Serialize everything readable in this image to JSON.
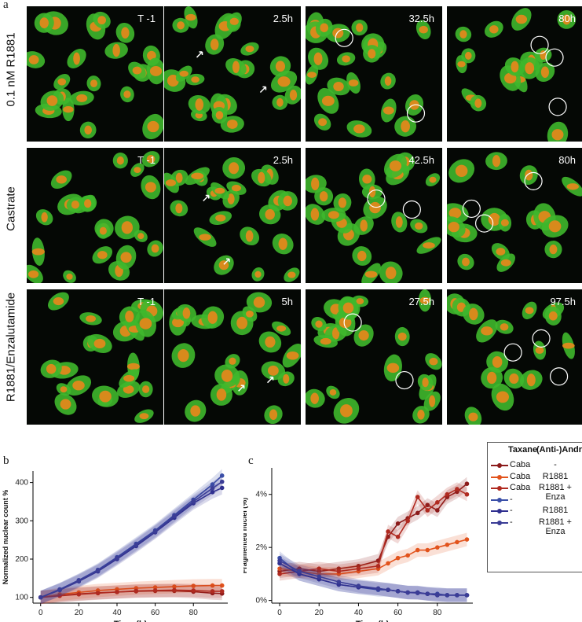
{
  "panel_a": {
    "letter": "a",
    "rows": [
      {
        "label": "0.1 nM R1881",
        "times": [
          "T -1",
          "2.5h",
          "32.5h",
          "80h"
        ]
      },
      {
        "label": "Castrate",
        "times": [
          "T -1",
          "2.5h",
          "42.5h",
          "80h"
        ]
      },
      {
        "label": "R1881/Enzalutamide",
        "times": [
          "T -1",
          "5h",
          "27.5h",
          "97.5h"
        ]
      }
    ],
    "colors": {
      "cytoplasm": "#3fb82c",
      "nucleus": "#d88a1c",
      "background": "#050805",
      "marker": "#ffffff"
    }
  },
  "legend": {
    "header_taxane": "Taxane",
    "header_androgens": "(Anti-)Androgens",
    "items": [
      {
        "taxane": "Caba",
        "androgen": "-",
        "color": "#8b1a1a"
      },
      {
        "taxane": "Caba",
        "androgen": "R1881",
        "color": "#e2531c"
      },
      {
        "taxane": "Caba",
        "androgen": "R1881 + Enza",
        "color": "#b02a20"
      },
      {
        "taxane": "-",
        "androgen": "-",
        "color": "#3a4fa8"
      },
      {
        "taxane": "-",
        "androgen": "R1881",
        "color": "#2f2f8f"
      },
      {
        "taxane": "-",
        "androgen": "R1881 + Enza",
        "color": "#3b3d96"
      }
    ]
  },
  "chart_data": [
    {
      "panel": "b",
      "type": "line",
      "xlabel": "Time (h)",
      "ylabel": "Normalized nuclear count %",
      "xlim": [
        -4,
        98
      ],
      "ylim": [
        85,
        430
      ],
      "xticks": [
        0,
        20,
        40,
        60,
        80
      ],
      "yticks": [
        100,
        200,
        300,
        400
      ],
      "grid": false,
      "x": [
        0,
        10,
        20,
        30,
        40,
        50,
        60,
        70,
        80,
        90,
        95
      ],
      "series": [
        {
          "color": "#8b1a1a",
          "values": [
            100,
            105,
            109,
            112,
            114,
            116,
            117,
            117,
            115,
            111,
            110
          ]
        },
        {
          "color": "#e2531c",
          "values": [
            100,
            108,
            113,
            118,
            121,
            124,
            126,
            128,
            130,
            131,
            131
          ]
        },
        {
          "color": "#b02a20",
          "values": [
            100,
            104,
            108,
            111,
            114,
            117,
            118,
            119,
            118,
            116,
            116
          ]
        },
        {
          "color": "#3a4fa8",
          "values": [
            100,
            121,
            145,
            172,
            205,
            240,
            275,
            315,
            355,
            395,
            418
          ]
        },
        {
          "color": "#2f2f8f",
          "values": [
            100,
            119,
            142,
            168,
            200,
            234,
            270,
            308,
            346,
            375,
            386
          ]
        },
        {
          "color": "#3b3d96",
          "values": [
            100,
            120,
            144,
            170,
            203,
            237,
            272,
            312,
            350,
            385,
            402
          ]
        }
      ]
    },
    {
      "panel": "c",
      "type": "line",
      "xlabel": "Time (h)",
      "ylabel": "Fragmented nuclei (%)",
      "xlim": [
        -4,
        98
      ],
      "ylim": [
        -0.1,
        5.0
      ],
      "xticks": [
        0,
        20,
        40,
        60,
        80
      ],
      "yticks": [
        0,
        2,
        4
      ],
      "ytick_labels": [
        "0%",
        "2%",
        "4%"
      ],
      "grid": false,
      "x": [
        0,
        10,
        20,
        30,
        40,
        50,
        55,
        60,
        65,
        70,
        75,
        80,
        85,
        90,
        95
      ],
      "series": [
        {
          "color": "#8b1a1a",
          "values": [
            1.1,
            1.2,
            1.1,
            1.2,
            1.3,
            1.5,
            2.4,
            2.9,
            3.1,
            3.3,
            3.6,
            3.4,
            3.9,
            4.1,
            4.4
          ]
        },
        {
          "color": "#e2531c",
          "values": [
            1.2,
            1.1,
            1.0,
            1.0,
            1.1,
            1.2,
            1.4,
            1.6,
            1.7,
            1.9,
            1.9,
            2.0,
            2.1,
            2.2,
            2.3
          ]
        },
        {
          "color": "#b02a20",
          "values": [
            1.0,
            1.1,
            1.2,
            1.1,
            1.2,
            1.3,
            2.6,
            2.4,
            3.0,
            3.9,
            3.4,
            3.7,
            4.0,
            4.2,
            4.0
          ]
        },
        {
          "color": "#3a4fa8",
          "values": [
            1.6,
            1.0,
            0.8,
            0.6,
            0.5,
            0.4,
            0.4,
            0.35,
            0.3,
            0.3,
            0.25,
            0.25,
            0.2,
            0.2,
            0.2
          ]
        },
        {
          "color": "#2f2f8f",
          "values": [
            1.4,
            1.0,
            0.8,
            0.6,
            0.5,
            0.45,
            0.4,
            0.35,
            0.3,
            0.3,
            0.25,
            0.2,
            0.2,
            0.2,
            0.2
          ]
        },
        {
          "color": "#3b3d96",
          "values": [
            1.5,
            1.1,
            0.9,
            0.7,
            0.55,
            0.45,
            0.4,
            0.35,
            0.3,
            0.28,
            0.25,
            0.22,
            0.2,
            0.2,
            0.2
          ]
        }
      ]
    }
  ],
  "panel_letters": {
    "b": "b",
    "c": "c"
  }
}
